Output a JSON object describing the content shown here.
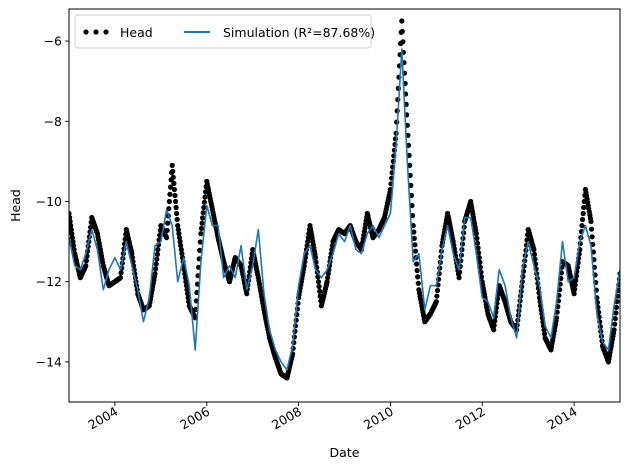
{
  "chart_data": {
    "type": "line",
    "title": "",
    "xlabel": "Date",
    "ylabel": "Head",
    "x_range": [
      "2003-01-01",
      "2015-01-01"
    ],
    "ylim": [
      -15.0,
      -5.2
    ],
    "x_ticks": [
      "2004",
      "2006",
      "2008",
      "2010",
      "2012",
      "2014"
    ],
    "y_ticks": [
      -14,
      -12,
      -10,
      -8,
      -6
    ],
    "grid": false,
    "legend": {
      "placement": "top-left",
      "ncol": 2
    },
    "series": [
      {
        "name": "Head",
        "style": "markers",
        "color": "#000000",
        "points": [
          [
            "2003-01-01",
            -10.3
          ],
          [
            "2003-02-15",
            -11.3
          ],
          [
            "2003-04-01",
            -11.9
          ],
          [
            "2003-05-15",
            -11.6
          ],
          [
            "2003-07-01",
            -10.4
          ],
          [
            "2003-08-15",
            -10.8
          ],
          [
            "2003-10-01",
            -11.6
          ],
          [
            "2003-11-15",
            -12.1
          ],
          [
            "2004-01-01",
            -12.0
          ],
          [
            "2004-02-15",
            -11.9
          ],
          [
            "2004-04-01",
            -10.7
          ],
          [
            "2004-05-15",
            -11.3
          ],
          [
            "2004-07-01",
            -12.3
          ],
          [
            "2004-08-15",
            -12.7
          ],
          [
            "2004-10-01",
            -12.6
          ],
          [
            "2004-11-15",
            -11.8
          ],
          [
            "2005-01-01",
            -10.6
          ],
          [
            "2005-02-15",
            -10.9
          ],
          [
            "2005-04-01",
            -9.1
          ],
          [
            "2005-05-15",
            -10.6
          ],
          [
            "2005-07-01",
            -11.6
          ],
          [
            "2005-08-15",
            -12.6
          ],
          [
            "2005-10-01",
            -12.9
          ],
          [
            "2005-11-15",
            -10.8
          ],
          [
            "2006-01-01",
            -9.5
          ],
          [
            "2006-02-15",
            -10.2
          ],
          [
            "2006-04-01",
            -10.9
          ],
          [
            "2006-05-15",
            -11.5
          ],
          [
            "2006-07-01",
            -12.0
          ],
          [
            "2006-08-15",
            -11.4
          ],
          [
            "2006-10-01",
            -11.6
          ],
          [
            "2006-11-15",
            -12.3
          ],
          [
            "2007-01-01",
            -11.2
          ],
          [
            "2007-02-15",
            -11.9
          ],
          [
            "2007-04-01",
            -12.7
          ],
          [
            "2007-05-15",
            -13.4
          ],
          [
            "2007-07-01",
            -13.9
          ],
          [
            "2007-08-15",
            -14.3
          ],
          [
            "2007-10-01",
            -14.4
          ],
          [
            "2007-11-15",
            -13.8
          ],
          [
            "2008-01-01",
            -12.4
          ],
          [
            "2008-02-15",
            -11.6
          ],
          [
            "2008-04-01",
            -10.6
          ],
          [
            "2008-05-15",
            -11.4
          ],
          [
            "2008-07-01",
            -12.6
          ],
          [
            "2008-08-15",
            -12.0
          ],
          [
            "2008-10-01",
            -11.0
          ],
          [
            "2008-11-15",
            -10.7
          ],
          [
            "2009-01-01",
            -10.8
          ],
          [
            "2009-02-15",
            -10.6
          ],
          [
            "2009-04-01",
            -11.0
          ],
          [
            "2009-05-15",
            -11.2
          ],
          [
            "2009-07-01",
            -10.3
          ],
          [
            "2009-08-15",
            -10.9
          ],
          [
            "2009-10-01",
            -10.7
          ],
          [
            "2009-11-15",
            -10.4
          ],
          [
            "2010-01-01",
            -9.7
          ],
          [
            "2010-02-15",
            -8.3
          ],
          [
            "2010-04-01",
            -5.5
          ],
          [
            "2010-05-15",
            -8.1
          ],
          [
            "2010-07-01",
            -10.6
          ],
          [
            "2010-08-15",
            -12.2
          ],
          [
            "2010-10-01",
            -13.0
          ],
          [
            "2010-11-15",
            -12.8
          ],
          [
            "2011-01-01",
            -12.5
          ],
          [
            "2011-02-15",
            -11.1
          ],
          [
            "2011-04-01",
            -10.3
          ],
          [
            "2011-05-15",
            -11.0
          ],
          [
            "2011-07-01",
            -11.9
          ],
          [
            "2011-08-15",
            -10.5
          ],
          [
            "2011-10-01",
            -10.0
          ],
          [
            "2011-11-15",
            -10.8
          ],
          [
            "2012-01-01",
            -12.0
          ],
          [
            "2012-02-15",
            -12.8
          ],
          [
            "2012-04-01",
            -13.2
          ],
          [
            "2012-05-15",
            -12.1
          ],
          [
            "2012-07-01",
            -12.5
          ],
          [
            "2012-08-15",
            -13.0
          ],
          [
            "2012-10-01",
            -13.2
          ],
          [
            "2012-11-15",
            -12.0
          ],
          [
            "2013-01-01",
            -10.7
          ],
          [
            "2013-02-15",
            -11.2
          ],
          [
            "2013-04-01",
            -12.4
          ],
          [
            "2013-05-15",
            -13.4
          ],
          [
            "2013-07-01",
            -13.7
          ],
          [
            "2013-08-15",
            -12.9
          ],
          [
            "2013-10-01",
            -11.5
          ],
          [
            "2013-11-15",
            -11.6
          ],
          [
            "2014-01-01",
            -12.3
          ],
          [
            "2014-02-15",
            -11.2
          ],
          [
            "2014-04-01",
            -9.7
          ],
          [
            "2014-05-15",
            -10.5
          ],
          [
            "2014-07-01",
            -12.4
          ],
          [
            "2014-08-15",
            -13.6
          ],
          [
            "2014-10-01",
            -14.0
          ],
          [
            "2014-11-15",
            -13.2
          ],
          [
            "2015-01-01",
            -11.8
          ]
        ]
      },
      {
        "name": "Simulation ($R^2$=87.68%)",
        "style": "line",
        "color": "#1f77b4",
        "points": [
          [
            "2003-01-01",
            -10.9
          ],
          [
            "2003-02-15",
            -11.6
          ],
          [
            "2003-04-01",
            -11.7
          ],
          [
            "2003-05-15",
            -11.3
          ],
          [
            "2003-07-01",
            -10.7
          ],
          [
            "2003-08-15",
            -11.2
          ],
          [
            "2003-10-01",
            -12.2
          ],
          [
            "2003-11-15",
            -11.7
          ],
          [
            "2004-01-01",
            -11.4
          ],
          [
            "2004-02-15",
            -11.7
          ],
          [
            "2004-04-01",
            -11.0
          ],
          [
            "2004-05-15",
            -11.6
          ],
          [
            "2004-07-01",
            -12.2
          ],
          [
            "2004-08-15",
            -13.0
          ],
          [
            "2004-10-01",
            -12.4
          ],
          [
            "2004-11-15",
            -11.1
          ],
          [
            "2005-01-01",
            -11.0
          ],
          [
            "2005-02-15",
            -10.2
          ],
          [
            "2005-04-01",
            -10.6
          ],
          [
            "2005-05-15",
            -12.0
          ],
          [
            "2005-07-01",
            -11.4
          ],
          [
            "2005-08-15",
            -12.1
          ],
          [
            "2005-10-01",
            -13.7
          ],
          [
            "2005-11-15",
            -11.5
          ],
          [
            "2006-01-01",
            -10.1
          ],
          [
            "2006-02-15",
            -10.6
          ],
          [
            "2006-04-01",
            -10.6
          ],
          [
            "2006-05-15",
            -11.9
          ],
          [
            "2006-07-01",
            -11.6
          ],
          [
            "2006-08-15",
            -11.9
          ],
          [
            "2006-10-01",
            -11.1
          ],
          [
            "2006-11-15",
            -12.2
          ],
          [
            "2007-01-01",
            -11.6
          ],
          [
            "2007-02-15",
            -10.7
          ],
          [
            "2007-04-01",
            -12.3
          ],
          [
            "2007-05-15",
            -13.2
          ],
          [
            "2007-07-01",
            -13.7
          ],
          [
            "2007-08-15",
            -14.0
          ],
          [
            "2007-10-01",
            -14.2
          ],
          [
            "2007-11-15",
            -13.6
          ],
          [
            "2008-01-01",
            -12.1
          ],
          [
            "2008-02-15",
            -11.3
          ],
          [
            "2008-04-01",
            -11.1
          ],
          [
            "2008-05-15",
            -11.7
          ],
          [
            "2008-07-01",
            -11.9
          ],
          [
            "2008-08-15",
            -11.7
          ],
          [
            "2008-10-01",
            -11.3
          ],
          [
            "2008-11-15",
            -10.8
          ],
          [
            "2009-01-01",
            -11.0
          ],
          [
            "2009-02-15",
            -10.6
          ],
          [
            "2009-04-01",
            -11.2
          ],
          [
            "2009-05-15",
            -11.3
          ],
          [
            "2009-07-01",
            -10.8
          ],
          [
            "2009-08-15",
            -10.6
          ],
          [
            "2009-10-01",
            -10.9
          ],
          [
            "2009-11-15",
            -10.6
          ],
          [
            "2010-01-01",
            -10.3
          ],
          [
            "2010-02-15",
            -8.6
          ],
          [
            "2010-04-01",
            -6.2
          ],
          [
            "2010-05-15",
            -9.0
          ],
          [
            "2010-07-01",
            -11.5
          ],
          [
            "2010-08-15",
            -11.3
          ],
          [
            "2010-10-01",
            -12.7
          ],
          [
            "2010-11-15",
            -12.1
          ],
          [
            "2011-01-01",
            -12.1
          ],
          [
            "2011-02-15",
            -11.2
          ],
          [
            "2011-04-01",
            -10.6
          ],
          [
            "2011-05-15",
            -11.3
          ],
          [
            "2011-07-01",
            -11.7
          ],
          [
            "2011-08-15",
            -10.4
          ],
          [
            "2011-10-01",
            -10.4
          ],
          [
            "2011-11-15",
            -11.3
          ],
          [
            "2012-01-01",
            -12.4
          ],
          [
            "2012-02-15",
            -12.5
          ],
          [
            "2012-04-01",
            -12.9
          ],
          [
            "2012-05-15",
            -11.7
          ],
          [
            "2012-07-01",
            -12.1
          ],
          [
            "2012-08-15",
            -12.9
          ],
          [
            "2012-10-01",
            -13.4
          ],
          [
            "2012-11-15",
            -11.7
          ],
          [
            "2013-01-01",
            -11.0
          ],
          [
            "2013-02-15",
            -11.6
          ],
          [
            "2013-04-01",
            -12.1
          ],
          [
            "2013-05-15",
            -13.1
          ],
          [
            "2013-07-01",
            -13.4
          ],
          [
            "2013-08-15",
            -12.5
          ],
          [
            "2013-10-01",
            -11.0
          ],
          [
            "2013-11-15",
            -12.0
          ],
          [
            "2014-01-01",
            -11.9
          ],
          [
            "2014-02-15",
            -11.0
          ],
          [
            "2014-04-01",
            -10.6
          ],
          [
            "2014-05-15",
            -11.1
          ],
          [
            "2014-07-01",
            -12.8
          ],
          [
            "2014-08-15",
            -13.5
          ],
          [
            "2014-10-01",
            -13.7
          ],
          [
            "2014-11-15",
            -12.6
          ],
          [
            "2015-01-01",
            -11.7
          ]
        ]
      }
    ]
  },
  "legend_items": [
    {
      "label": "Head"
    },
    {
      "label": "Simulation (R²=87.68%)"
    }
  ]
}
